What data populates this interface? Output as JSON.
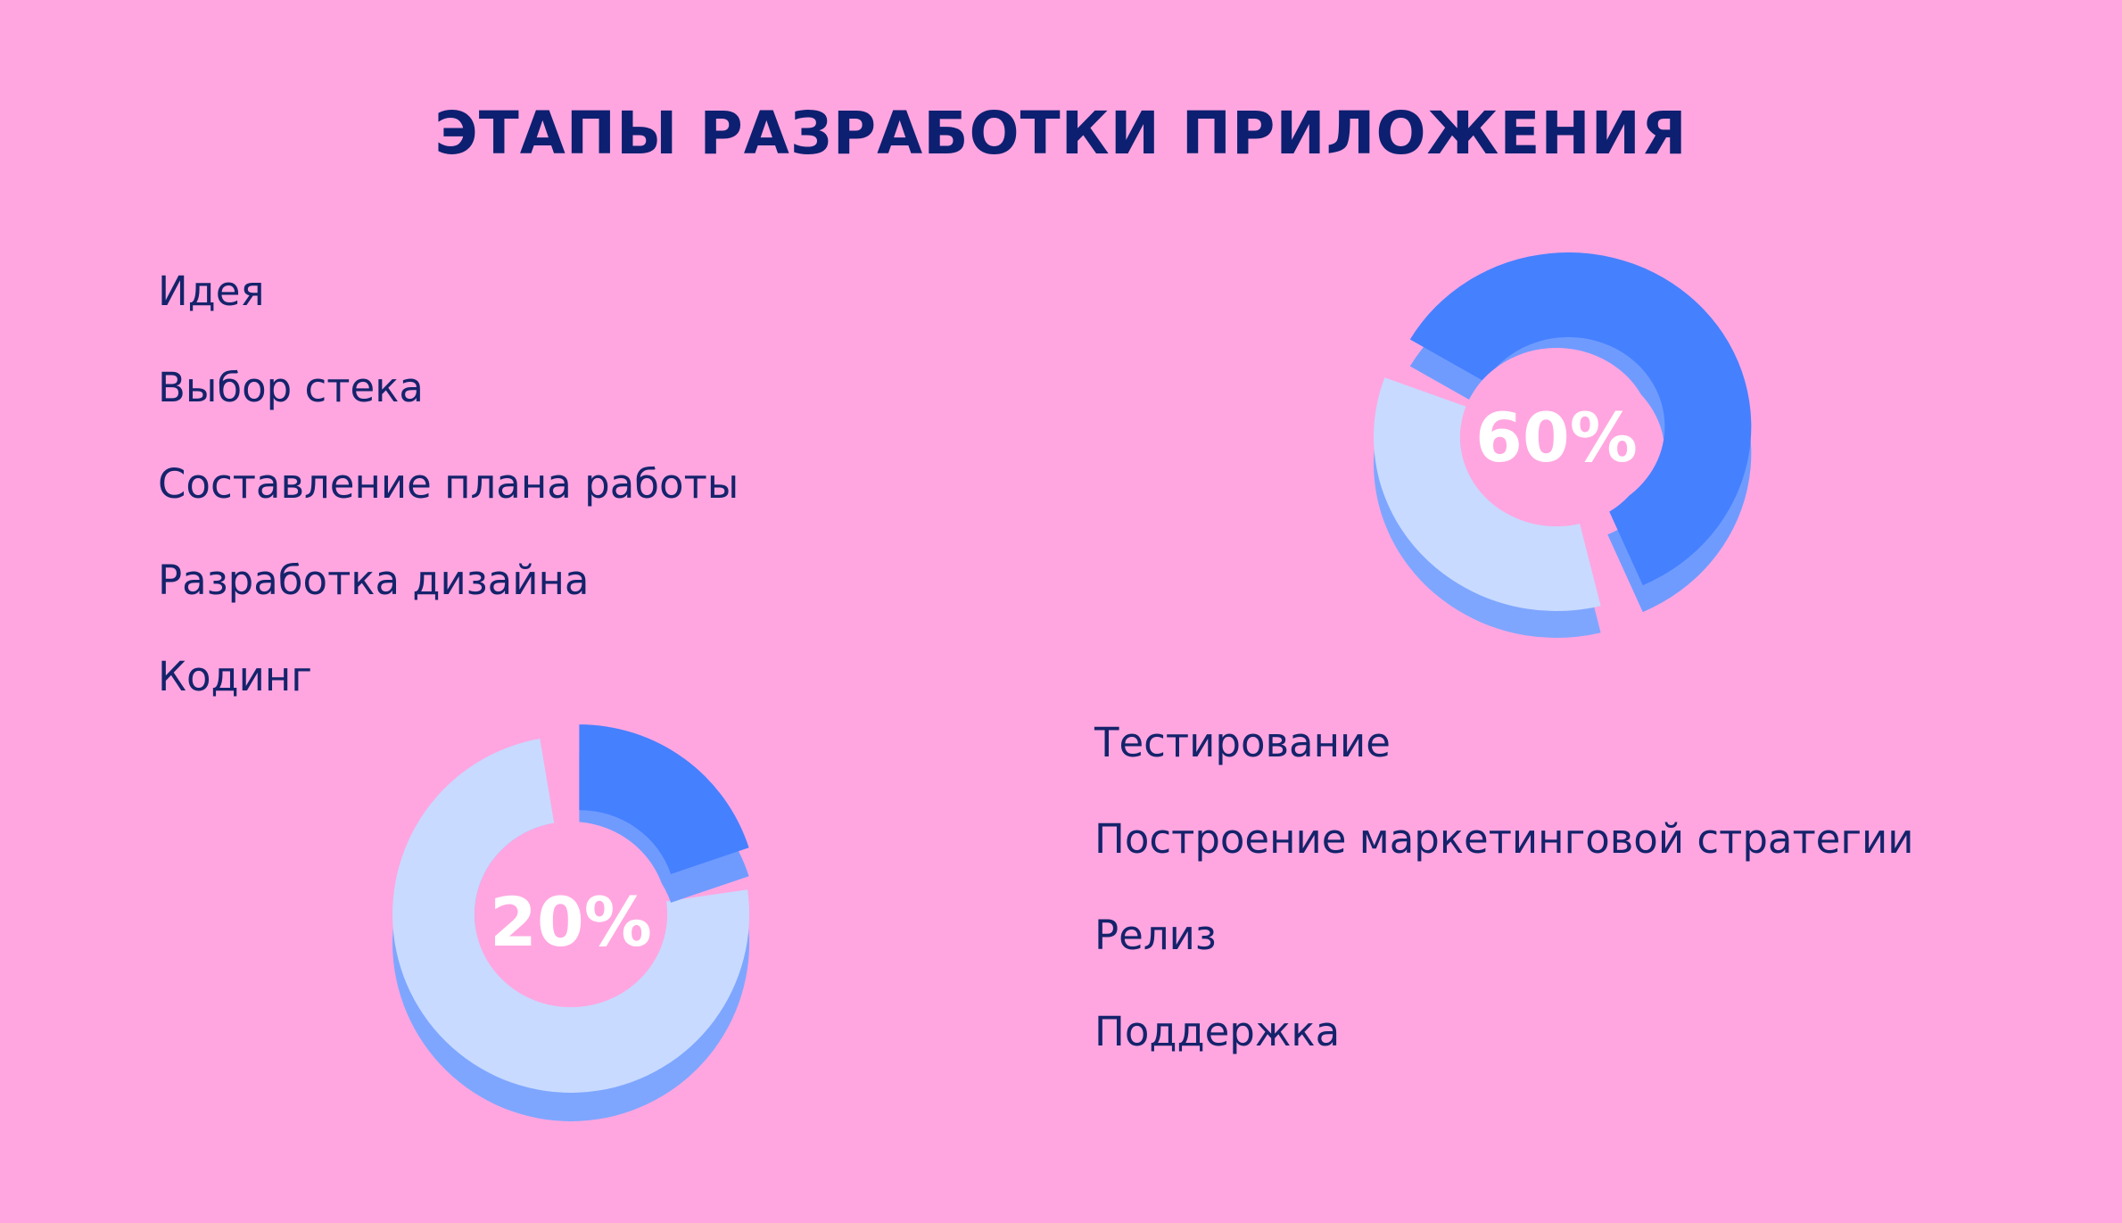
{
  "title": "ЭТАПЫ РАЗРАБОТКИ ПРИЛОЖЕНИЯ",
  "left_list": [
    "Идея",
    "Выбор стека",
    "Составление плана работы",
    "Разработка дизайна",
    "Кодинг"
  ],
  "right_list": [
    "Тестирование",
    "Построение маркетинговой стратегии",
    "Релиз",
    "Поддержка"
  ],
  "colors": {
    "background": "#ffa6e0",
    "title": "#0d1f70",
    "text": "#14236b",
    "highlight": "#4580ff",
    "highlight_side": "#6f9bff",
    "rest": "#c8daff",
    "rest_side": "#7ea6ff"
  },
  "chart_data": [
    {
      "type": "pie",
      "variant": "3d-donut",
      "label": "60%",
      "values": [
        60,
        40
      ],
      "highlighted_slice": 0
    },
    {
      "type": "pie",
      "variant": "3d-donut",
      "label": "20%",
      "values": [
        20,
        80
      ],
      "highlighted_slice": 0
    }
  ]
}
